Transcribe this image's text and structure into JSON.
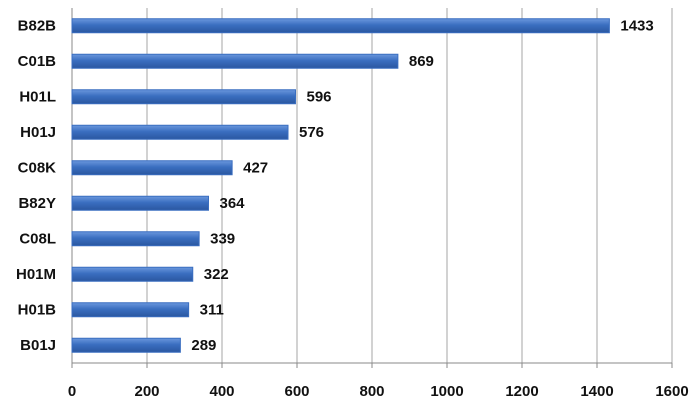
{
  "chart_data": {
    "type": "barh",
    "categories": [
      "B82B",
      "C01B",
      "H01L",
      "H01J",
      "C08K",
      "B82Y",
      "C08L",
      "H01M",
      "H01B",
      "B01J"
    ],
    "values": [
      1433,
      869,
      596,
      576,
      427,
      364,
      339,
      322,
      311,
      289
    ],
    "color": "#3a6ec0",
    "xlim": [
      0,
      1600
    ],
    "xticks": [
      0,
      200,
      400,
      600,
      800,
      1000,
      1200,
      1400,
      1600
    ],
    "grid": true
  }
}
